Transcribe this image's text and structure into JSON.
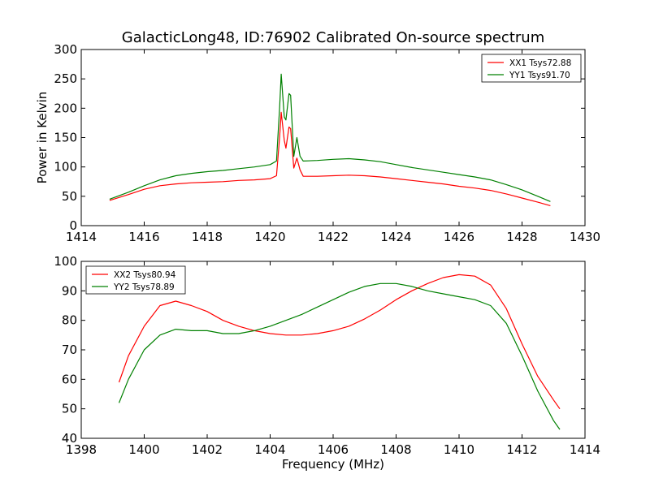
{
  "title": "GalacticLong48, ID:76902 Calibrated On-source spectrum",
  "chart_data": [
    {
      "type": "line",
      "xlabel": "",
      "ylabel": "Power in Kelvin",
      "xlim": [
        1414,
        1430
      ],
      "ylim": [
        0,
        300
      ],
      "xticks": [
        1414,
        1416,
        1418,
        1420,
        1422,
        1424,
        1426,
        1428,
        1430
      ],
      "yticks": [
        0,
        50,
        100,
        150,
        200,
        250,
        300
      ],
      "legend_position": "top-right",
      "grid": false,
      "series": [
        {
          "name": "XX1 Tsys72.88",
          "color": "#ff0000",
          "x": [
            1414.9,
            1415.5,
            1416.0,
            1416.5,
            1417.0,
            1417.5,
            1418.0,
            1418.5,
            1419.0,
            1419.5,
            1420.0,
            1420.2,
            1420.3,
            1420.35,
            1420.45,
            1420.5,
            1420.6,
            1420.65,
            1420.75,
            1420.85,
            1420.95,
            1421.05,
            1421.5,
            1422.0,
            1422.5,
            1423.0,
            1423.5,
            1424.0,
            1424.5,
            1425.0,
            1425.5,
            1426.0,
            1426.5,
            1427.0,
            1427.5,
            1428.0,
            1428.5,
            1428.9
          ],
          "values": [
            43,
            53,
            62,
            68,
            71,
            73,
            74,
            75,
            77,
            78,
            80,
            85,
            150,
            193,
            145,
            132,
            168,
            165,
            98,
            115,
            95,
            84,
            84,
            85,
            86,
            85,
            83,
            80,
            77,
            74,
            71,
            67,
            64,
            60,
            54,
            47,
            40,
            34
          ]
        },
        {
          "name": "YY1 Tsys91.70",
          "color": "#008000",
          "x": [
            1414.9,
            1415.5,
            1416.0,
            1416.5,
            1417.0,
            1417.5,
            1418.0,
            1418.5,
            1419.0,
            1419.5,
            1420.0,
            1420.2,
            1420.3,
            1420.35,
            1420.45,
            1420.5,
            1420.6,
            1420.65,
            1420.75,
            1420.85,
            1420.95,
            1421.05,
            1421.5,
            1422.0,
            1422.5,
            1423.0,
            1423.5,
            1424.0,
            1424.5,
            1425.0,
            1425.5,
            1426.0,
            1426.5,
            1427.0,
            1427.5,
            1428.0,
            1428.5,
            1428.9
          ],
          "values": [
            45,
            57,
            68,
            78,
            85,
            89,
            92,
            94,
            97,
            100,
            104,
            110,
            200,
            258,
            185,
            180,
            225,
            222,
            118,
            150,
            118,
            110,
            111,
            113,
            114,
            112,
            109,
            104,
            99,
            95,
            91,
            87,
            83,
            78,
            70,
            61,
            50,
            41
          ]
        }
      ]
    },
    {
      "type": "line",
      "xlabel": "Frequency (MHz)",
      "ylabel": "",
      "xlim": [
        1398,
        1414
      ],
      "ylim": [
        40,
        100
      ],
      "xticks": [
        1398,
        1400,
        1402,
        1404,
        1406,
        1408,
        1410,
        1412,
        1414
      ],
      "yticks": [
        40,
        50,
        60,
        70,
        80,
        90,
        100
      ],
      "legend_position": "top-left",
      "grid": false,
      "series": [
        {
          "name": "XX2 Tsys80.94",
          "color": "#ff0000",
          "x": [
            1399.2,
            1399.5,
            1400.0,
            1400.5,
            1401.0,
            1401.5,
            1402.0,
            1402.5,
            1403.0,
            1403.5,
            1404.0,
            1404.5,
            1405.0,
            1405.5,
            1406.0,
            1406.5,
            1407.0,
            1407.5,
            1408.0,
            1408.5,
            1409.0,
            1409.5,
            1410.0,
            1410.5,
            1411.0,
            1411.5,
            1412.0,
            1412.5,
            1413.0,
            1413.2
          ],
          "values": [
            59,
            68,
            78,
            85,
            86.5,
            85,
            83,
            80,
            78,
            76.5,
            75.5,
            75,
            75,
            75.5,
            76.5,
            78,
            80.5,
            83.5,
            87,
            90,
            92.5,
            94.5,
            95.5,
            95,
            92,
            84,
            72,
            61,
            53,
            50
          ]
        },
        {
          "name": "YY2 Tsys78.89",
          "color": "#008000",
          "x": [
            1399.2,
            1399.5,
            1400.0,
            1400.5,
            1401.0,
            1401.5,
            1402.0,
            1402.5,
            1403.0,
            1403.5,
            1404.0,
            1404.5,
            1405.0,
            1405.5,
            1406.0,
            1406.5,
            1407.0,
            1407.5,
            1408.0,
            1408.5,
            1409.0,
            1409.5,
            1410.0,
            1410.5,
            1411.0,
            1411.5,
            1412.0,
            1412.5,
            1413.0,
            1413.2
          ],
          "values": [
            52,
            60,
            70,
            75,
            77,
            76.5,
            76.5,
            75.5,
            75.5,
            76.5,
            78,
            80,
            82,
            84.5,
            87,
            89.5,
            91.5,
            92.5,
            92.5,
            91.5,
            90,
            89,
            88,
            87,
            85,
            79,
            68,
            56,
            46,
            43
          ]
        }
      ]
    }
  ]
}
